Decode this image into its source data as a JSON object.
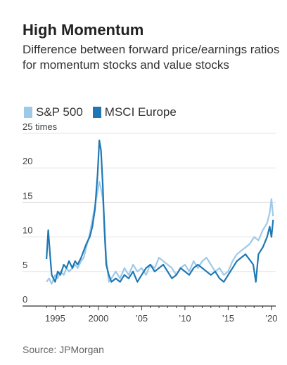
{
  "header": {
    "title": "High Momentum",
    "subtitle": "Difference between forward price/earnings ratios for momentum stocks and value stocks"
  },
  "source": "Source: JPMorgan",
  "colors": {
    "sp500": "#9ecae9",
    "msci": "#1f78b4",
    "grid": "#e3e3e3",
    "axis": "#333333"
  },
  "chart_data": {
    "type": "line",
    "title": "High Momentum",
    "subtitle": "Difference between forward price/earnings ratios for momentum stocks and value stocks",
    "ylabel": "",
    "ylim": [
      0,
      25
    ],
    "xlim": [
      1993.5,
      2020.5
    ],
    "y_ticks": [
      {
        "value": 25,
        "label": "25 times"
      },
      {
        "value": 20,
        "label": "20"
      },
      {
        "value": 15,
        "label": "15"
      },
      {
        "value": 10,
        "label": "10"
      },
      {
        "value": 5,
        "label": "5"
      },
      {
        "value": 0,
        "label": "0"
      }
    ],
    "x_ticks": [
      {
        "value": 1995,
        "label": "1995"
      },
      {
        "value": 2000,
        "label": "2000"
      },
      {
        "value": 2005,
        "label": "’05"
      },
      {
        "value": 2010,
        "label": "’10"
      },
      {
        "value": 2015,
        "label": "’15"
      },
      {
        "value": 2020,
        "label": "’20"
      }
    ],
    "grid": true,
    "legend_position": "top-left",
    "series": [
      {
        "name": "S&P 500",
        "color": "#9ecae9",
        "x": [
          1994.0,
          1994.3,
          1994.6,
          1995.0,
          1995.3,
          1995.6,
          1996.0,
          1996.3,
          1996.6,
          1997.0,
          1997.3,
          1997.6,
          1998.0,
          1998.3,
          1998.6,
          1999.0,
          1999.3,
          1999.6,
          1999.9,
          2000.1,
          2000.3,
          2000.5,
          2000.7,
          2000.9,
          2001.2,
          2001.5,
          2002.0,
          2002.5,
          2003.0,
          2003.5,
          2004.0,
          2004.5,
          2005.0,
          2005.5,
          2006.0,
          2006.5,
          2007.0,
          2007.5,
          2008.0,
          2008.5,
          2009.0,
          2009.5,
          2010.0,
          2010.5,
          2011.0,
          2011.5,
          2012.0,
          2012.5,
          2013.0,
          2013.5,
          2014.0,
          2014.5,
          2015.0,
          2015.5,
          2016.0,
          2016.5,
          2017.0,
          2017.5,
          2018.0,
          2018.5,
          2019.0,
          2019.5,
          2019.8,
          2020.0,
          2020.2
        ],
        "values": [
          3.5,
          4.0,
          3.2,
          4.5,
          4.0,
          5.0,
          4.5,
          5.5,
          5.0,
          5.5,
          6.0,
          5.5,
          6.5,
          7.0,
          8.5,
          10.5,
          12.5,
          14.5,
          16.5,
          18.0,
          17.0,
          15.5,
          12.0,
          7.0,
          3.5,
          4.0,
          5.0,
          4.0,
          5.5,
          4.5,
          6.0,
          5.0,
          5.5,
          4.5,
          6.0,
          5.5,
          7.0,
          6.5,
          6.0,
          5.5,
          4.5,
          5.5,
          6.0,
          5.0,
          6.5,
          5.5,
          6.5,
          7.0,
          6.0,
          5.0,
          5.5,
          4.5,
          5.0,
          6.5,
          7.5,
          8.0,
          8.5,
          9.0,
          10.0,
          9.5,
          11.0,
          12.0,
          13.5,
          15.5,
          13.0
        ]
      },
      {
        "name": "MSCI Europe",
        "color": "#1f78b4",
        "x": [
          1994.0,
          1994.2,
          1994.4,
          1994.6,
          1995.0,
          1995.3,
          1995.6,
          1996.0,
          1996.3,
          1996.6,
          1997.0,
          1997.3,
          1997.6,
          1998.0,
          1998.3,
          1998.6,
          1999.0,
          1999.3,
          1999.6,
          1999.9,
          2000.1,
          2000.3,
          2000.5,
          2000.7,
          2000.9,
          2001.2,
          2001.5,
          2002.0,
          2002.5,
          2003.0,
          2003.5,
          2004.0,
          2004.5,
          2005.0,
          2005.5,
          2006.0,
          2006.5,
          2007.0,
          2007.5,
          2008.0,
          2008.5,
          2009.0,
          2009.5,
          2010.0,
          2010.5,
          2011.0,
          2011.5,
          2012.0,
          2012.5,
          2013.0,
          2013.5,
          2014.0,
          2014.5,
          2015.0,
          2015.5,
          2016.0,
          2016.5,
          2017.0,
          2017.3,
          2017.6,
          2017.9,
          2018.2,
          2018.5,
          2019.0,
          2019.5,
          2019.8,
          2020.0,
          2020.2
        ],
        "values": [
          6.8,
          11.0,
          7.5,
          4.5,
          3.5,
          5.0,
          4.5,
          6.0,
          5.5,
          6.5,
          5.5,
          6.5,
          6.0,
          7.0,
          8.0,
          9.0,
          10.0,
          11.5,
          14.0,
          19.0,
          24.0,
          22.5,
          17.5,
          11.0,
          6.0,
          4.5,
          3.5,
          4.0,
          3.5,
          4.5,
          4.0,
          5.0,
          3.5,
          4.5,
          5.5,
          6.0,
          5.0,
          5.5,
          6.0,
          5.0,
          4.0,
          4.5,
          5.5,
          5.0,
          4.5,
          5.5,
          6.0,
          5.5,
          5.0,
          4.5,
          5.0,
          4.0,
          3.5,
          4.5,
          5.5,
          6.5,
          7.0,
          7.5,
          7.0,
          6.5,
          6.0,
          3.5,
          7.5,
          8.5,
          10.0,
          11.5,
          10.0,
          12.5
        ]
      }
    ]
  }
}
